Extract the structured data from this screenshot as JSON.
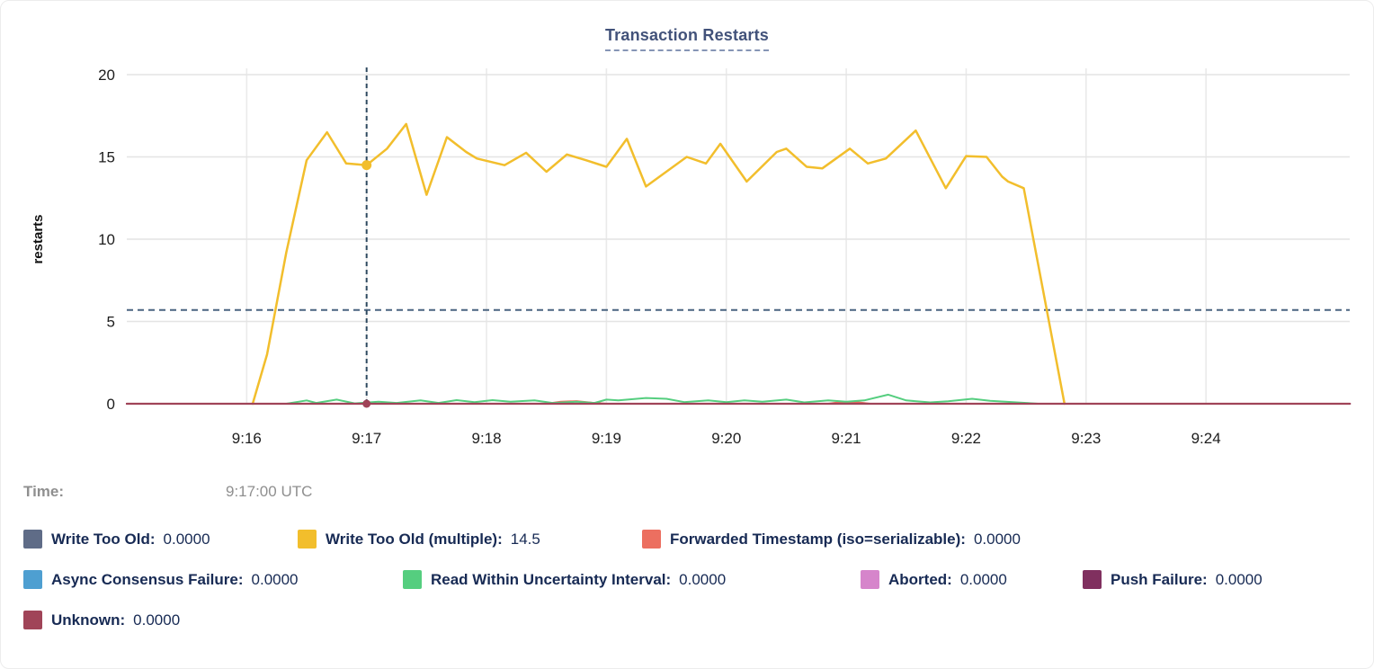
{
  "title": "Transaction Restarts",
  "tooltip": {
    "time_label": "Time:",
    "time_value": "9:17:00 UTC"
  },
  "legend": {
    "rows": [
      {
        "items": [
          {
            "label": "Write Too Old:",
            "value": "0.0000",
            "color": "#5F6C87"
          },
          {
            "label": "Write Too Old (multiple):",
            "value": "14.5",
            "color": "#F2BE2C"
          },
          {
            "label": "Forwarded Timestamp (iso=serializable):",
            "value": "0.0000",
            "color": "#EC6F60"
          }
        ]
      },
      {
        "items": [
          {
            "label": "Async Consensus Failure:",
            "value": "0.0000",
            "color": "#4E9FD1"
          },
          {
            "label": "Read Within Uncertainty Interval:",
            "value": "0.0000",
            "color": "#55CE7F"
          },
          {
            "label": "Aborted:",
            "value": "0.0000",
            "color": "#D685CB"
          },
          {
            "label": "Push Failure:",
            "value": "0.0000",
            "color": "#80305F"
          }
        ]
      },
      {
        "items": [
          {
            "label": "Unknown:",
            "value": "0.0000",
            "color": "#A04458"
          }
        ]
      }
    ]
  },
  "chart_data": {
    "type": "line",
    "title": "Transaction Restarts",
    "xlabel": "",
    "ylabel": "restarts",
    "ylim": [
      0,
      20
    ],
    "grid": true,
    "legend_position": "bottom",
    "x_axis_note": "x values are minutes after 9:15:00 UTC; ticks every minute",
    "y_ticks": [
      {
        "v": 0,
        "label": "0"
      },
      {
        "v": 5,
        "label": "5"
      },
      {
        "v": 10,
        "label": "10"
      },
      {
        "v": 15,
        "label": "15"
      },
      {
        "v": 20,
        "label": "20"
      }
    ],
    "x_ticks": [
      {
        "m": 1,
        "label": "9:16"
      },
      {
        "m": 2,
        "label": "9:17"
      },
      {
        "m": 3,
        "label": "9:18"
      },
      {
        "m": 4,
        "label": "9:19"
      },
      {
        "m": 5,
        "label": "9:20"
      },
      {
        "m": 6,
        "label": "9:21"
      },
      {
        "m": 7,
        "label": "9:22"
      },
      {
        "m": 8,
        "label": "9:23"
      },
      {
        "m": 9,
        "label": "9:24"
      }
    ],
    "threshold_line": {
      "value": 5.7,
      "color": "#4A6480"
    },
    "hover": {
      "x_min": 2,
      "time": "9:17:00 UTC",
      "points": [
        {
          "series": "Write Too Old (multiple)",
          "value": 14.5,
          "r": 5.5
        },
        {
          "series": "Unknown",
          "value": 0,
          "r": 4.5
        }
      ]
    },
    "series": [
      {
        "name": "Write Too Old",
        "color": "#5F6C87",
        "width": 2,
        "points": [
          [
            0,
            0
          ],
          [
            10.2,
            0
          ]
        ]
      },
      {
        "name": "Write Too Old (multiple)",
        "color": "#F2BE2C",
        "width": 2.5,
        "points": [
          [
            1.05,
            0
          ],
          [
            1.17,
            3
          ],
          [
            1.33,
            9.2
          ],
          [
            1.5,
            14.8
          ],
          [
            1.67,
            16.5
          ],
          [
            1.83,
            14.6
          ],
          [
            1.92,
            14.55
          ],
          [
            2.0,
            14.5
          ],
          [
            2.17,
            15.5
          ],
          [
            2.33,
            17.0
          ],
          [
            2.5,
            12.7
          ],
          [
            2.67,
            16.2
          ],
          [
            2.83,
            15.3
          ],
          [
            2.92,
            14.9
          ],
          [
            3.15,
            14.5
          ],
          [
            3.33,
            15.25
          ],
          [
            3.5,
            14.1
          ],
          [
            3.67,
            15.15
          ],
          [
            3.83,
            14.8
          ],
          [
            4.0,
            14.4
          ],
          [
            4.17,
            16.1
          ],
          [
            4.33,
            13.2
          ],
          [
            4.67,
            15.0
          ],
          [
            4.83,
            14.6
          ],
          [
            4.95,
            15.8
          ],
          [
            5.17,
            13.5
          ],
          [
            5.42,
            15.3
          ],
          [
            5.5,
            15.5
          ],
          [
            5.67,
            14.4
          ],
          [
            5.8,
            14.3
          ],
          [
            6.03,
            15.5
          ],
          [
            6.18,
            14.6
          ],
          [
            6.33,
            14.9
          ],
          [
            6.58,
            16.6
          ],
          [
            6.83,
            13.1
          ],
          [
            7.0,
            15.05
          ],
          [
            7.17,
            15.0
          ],
          [
            7.3,
            13.8
          ],
          [
            7.35,
            13.5
          ],
          [
            7.48,
            13.1
          ],
          [
            7.82,
            0
          ]
        ]
      },
      {
        "name": "Forwarded Timestamp (iso=serializable)",
        "color": "#EC6F60",
        "width": 2,
        "points": [
          [
            0,
            0
          ],
          [
            3.5,
            0
          ],
          [
            3.62,
            0.12
          ],
          [
            3.75,
            0.16
          ],
          [
            3.88,
            0.06
          ],
          [
            4.0,
            0
          ],
          [
            5.85,
            0
          ],
          [
            5.95,
            0.1
          ],
          [
            6.1,
            0.08
          ],
          [
            6.2,
            0
          ],
          [
            10.2,
            0
          ]
        ]
      },
      {
        "name": "Async Consensus Failure",
        "color": "#4E9FD1",
        "width": 2,
        "points": [
          [
            0,
            0
          ],
          [
            10.2,
            0
          ]
        ]
      },
      {
        "name": "Read Within Uncertainty Interval",
        "color": "#55CE7F",
        "width": 2,
        "points": [
          [
            1.33,
            0
          ],
          [
            1.5,
            0.2
          ],
          [
            1.58,
            0.05
          ],
          [
            1.75,
            0.25
          ],
          [
            1.9,
            0.02
          ],
          [
            2.1,
            0.12
          ],
          [
            2.25,
            0.05
          ],
          [
            2.45,
            0.2
          ],
          [
            2.6,
            0.05
          ],
          [
            2.75,
            0.22
          ],
          [
            2.9,
            0.1
          ],
          [
            3.05,
            0.22
          ],
          [
            3.2,
            0.12
          ],
          [
            3.4,
            0.2
          ],
          [
            3.55,
            0.05
          ],
          [
            3.75,
            0.12
          ],
          [
            3.9,
            0.05
          ],
          [
            4.0,
            0.25
          ],
          [
            4.1,
            0.2
          ],
          [
            4.33,
            0.35
          ],
          [
            4.5,
            0.3
          ],
          [
            4.65,
            0.1
          ],
          [
            4.85,
            0.2
          ],
          [
            5.0,
            0.1
          ],
          [
            5.15,
            0.2
          ],
          [
            5.3,
            0.12
          ],
          [
            5.5,
            0.25
          ],
          [
            5.65,
            0.08
          ],
          [
            5.85,
            0.2
          ],
          [
            6.0,
            0.12
          ],
          [
            6.15,
            0.2
          ],
          [
            6.35,
            0.55
          ],
          [
            6.5,
            0.2
          ],
          [
            6.7,
            0.08
          ],
          [
            6.85,
            0.15
          ],
          [
            7.05,
            0.3
          ],
          [
            7.2,
            0.18
          ],
          [
            7.5,
            0.05
          ],
          [
            7.6,
            0
          ]
        ]
      },
      {
        "name": "Aborted",
        "color": "#D685CB",
        "width": 2,
        "points": [
          [
            0,
            0
          ],
          [
            10.2,
            0
          ]
        ]
      },
      {
        "name": "Push Failure",
        "color": "#80305F",
        "width": 2,
        "points": [
          [
            0,
            0
          ],
          [
            10.2,
            0
          ]
        ]
      },
      {
        "name": "Unknown",
        "color": "#A04458",
        "width": 2.2,
        "points": [
          [
            0,
            0
          ],
          [
            10.2,
            0
          ]
        ]
      }
    ]
  }
}
